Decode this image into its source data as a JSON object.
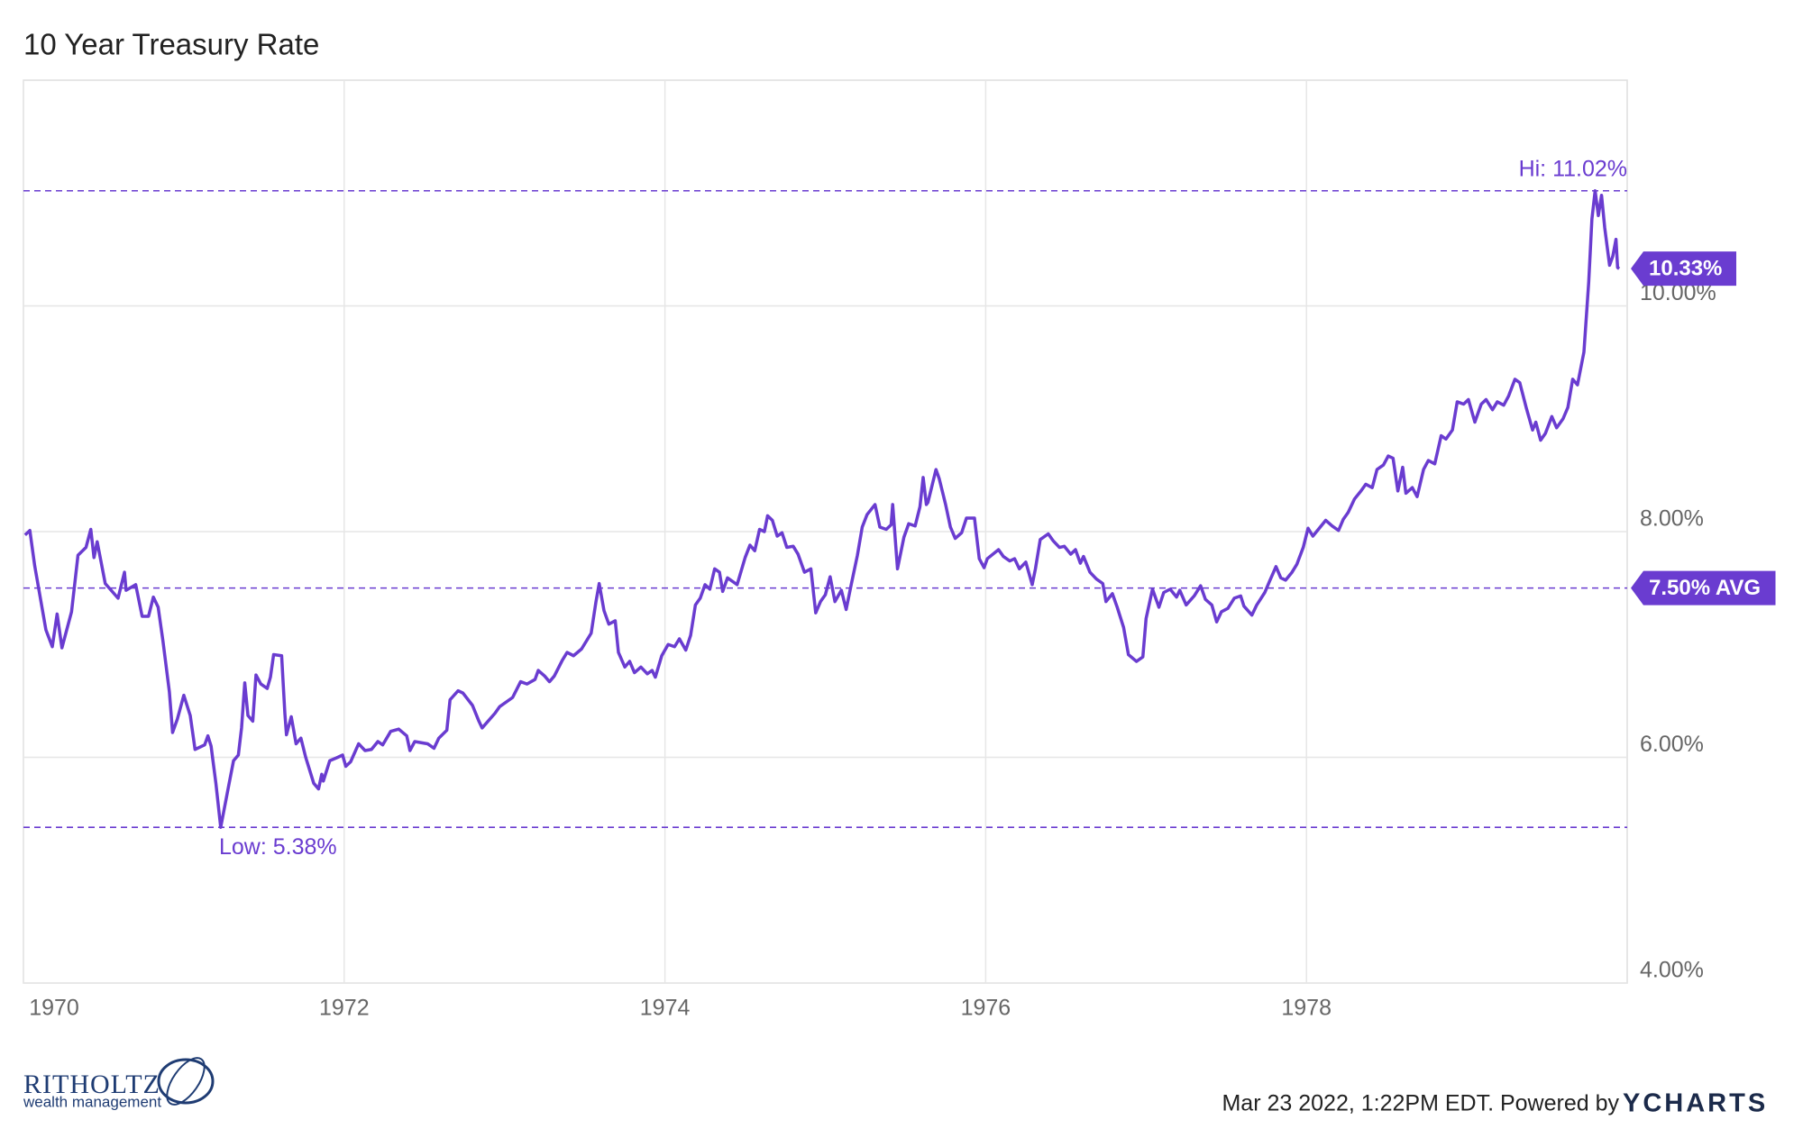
{
  "chart_data": {
    "type": "line",
    "title": "10 Year Treasury Rate",
    "color": "#6a3cd0",
    "x": [
      1970.01,
      1970.04,
      1970.07,
      1970.14,
      1970.18,
      1970.21,
      1970.24,
      1970.3,
      1970.34,
      1970.39,
      1970.42,
      1970.44,
      1970.46,
      1970.51,
      1970.59,
      1970.63,
      1970.64,
      1970.7,
      1970.74,
      1970.78,
      1970.81,
      1970.84,
      1970.87,
      1970.91,
      1970.93,
      1970.96,
      1971.0,
      1971.04,
      1971.07,
      1971.13,
      1971.15,
      1971.17,
      1971.2,
      1971.23,
      1971.28,
      1971.31,
      1971.34,
      1971.36,
      1971.38,
      1971.4,
      1971.43,
      1971.45,
      1971.48,
      1971.52,
      1971.54,
      1971.56,
      1971.61,
      1971.63,
      1971.64,
      1971.67,
      1971.7,
      1971.73,
      1971.76,
      1971.81,
      1971.84,
      1971.86,
      1971.87,
      1971.91,
      1971.96,
      1971.99,
      1972.01,
      1972.04,
      1972.09,
      1972.13,
      1972.17,
      1972.21,
      1972.24,
      1972.29,
      1972.34,
      1972.39,
      1972.41,
      1972.44,
      1972.52,
      1972.56,
      1972.59,
      1972.64,
      1972.66,
      1972.71,
      1972.74,
      1972.8,
      1972.84,
      1972.86,
      1972.94,
      1972.97,
      1973.05,
      1973.1,
      1973.14,
      1973.19,
      1973.21,
      1973.25,
      1973.28,
      1973.31,
      1973.36,
      1973.39,
      1973.43,
      1973.48,
      1973.54,
      1973.57,
      1973.59,
      1973.62,
      1973.65,
      1973.69,
      1973.71,
      1973.75,
      1973.78,
      1973.81,
      1973.85,
      1973.89,
      1973.92,
      1973.94,
      1973.98,
      1974.02,
      1974.06,
      1974.09,
      1974.13,
      1974.16,
      1974.19,
      1974.22,
      1974.25,
      1974.28,
      1974.31,
      1974.34,
      1974.36,
      1974.39,
      1974.45,
      1974.5,
      1974.53,
      1974.56,
      1974.59,
      1974.62,
      1974.64,
      1974.67,
      1974.7,
      1974.73,
      1974.76,
      1974.8,
      1974.83,
      1974.87,
      1974.91,
      1974.94,
      1974.97,
      1975.0,
      1975.03,
      1975.06,
      1975.1,
      1975.13,
      1975.16,
      1975.2,
      1975.23,
      1975.26,
      1975.31,
      1975.34,
      1975.38,
      1975.41,
      1975.42,
      1975.45,
      1975.49,
      1975.52,
      1975.56,
      1975.59,
      1975.61,
      1975.63,
      1975.64,
      1975.69,
      1975.71,
      1975.75,
      1975.78,
      1975.81,
      1975.85,
      1975.88,
      1975.93,
      1975.96,
      1975.99,
      1976.01,
      1976.08,
      1976.11,
      1976.15,
      1976.18,
      1976.21,
      1976.25,
      1976.29,
      1976.31,
      1976.34,
      1976.39,
      1976.42,
      1976.46,
      1976.49,
      1976.53,
      1976.56,
      1976.59,
      1976.61,
      1976.65,
      1976.69,
      1976.73,
      1976.75,
      1976.79,
      1976.82,
      1976.86,
      1976.89,
      1976.94,
      1976.98,
      1977.0,
      1977.04,
      1977.08,
      1977.11,
      1977.15,
      1977.19,
      1977.21,
      1977.25,
      1977.3,
      1977.34,
      1977.37,
      1977.41,
      1977.44,
      1977.47,
      1977.51,
      1977.55,
      1977.59,
      1977.61,
      1977.66,
      1977.69,
      1977.74,
      1977.77,
      1977.81,
      1977.84,
      1977.87,
      1977.91,
      1977.94,
      1977.98,
      1978.01,
      1978.04,
      1978.08,
      1978.12,
      1978.16,
      1978.2,
      1978.23,
      1978.26,
      1978.3,
      1978.34,
      1978.37,
      1978.41,
      1978.44,
      1978.48,
      1978.51,
      1978.54,
      1978.57,
      1978.6,
      1978.62,
      1978.66,
      1978.69,
      1978.73,
      1978.76,
      1978.8,
      1978.84,
      1978.87,
      1978.91,
      1978.94,
      1978.98,
      1979.01,
      1979.05,
      1979.09,
      1979.12,
      1979.16,
      1979.19,
      1979.23,
      1979.26,
      1979.3,
      1979.33,
      1979.37,
      1979.41,
      1979.43,
      1979.46,
      1979.49,
      1979.53,
      1979.56,
      1979.6,
      1979.63,
      1979.66,
      1979.69,
      1979.73,
      1979.76,
      1979.78,
      1979.8,
      1979.82,
      1979.84,
      1979.86,
      1979.89,
      1979.91,
      1979.93,
      1979.94,
      1979.95
    ],
    "values": [
      7.97,
      8.01,
      7.7,
      7.13,
      6.98,
      7.27,
      6.97,
      7.29,
      7.79,
      7.86,
      8.02,
      7.77,
      7.91,
      7.54,
      7.41,
      7.64,
      7.48,
      7.53,
      7.25,
      7.25,
      7.42,
      7.33,
      7.03,
      6.58,
      6.22,
      6.34,
      6.55,
      6.37,
      6.07,
      6.11,
      6.19,
      6.1,
      5.77,
      5.38,
      5.75,
      5.97,
      6.02,
      6.26,
      6.66,
      6.37,
      6.32,
      6.73,
      6.65,
      6.61,
      6.71,
      6.91,
      6.9,
      6.39,
      6.2,
      6.36,
      6.12,
      6.17,
      6.0,
      5.77,
      5.72,
      5.85,
      5.79,
      5.97,
      6.0,
      6.02,
      5.92,
      5.96,
      6.12,
      6.06,
      6.07,
      6.14,
      6.11,
      6.23,
      6.25,
      6.19,
      6.06,
      6.14,
      6.12,
      6.08,
      6.17,
      6.24,
      6.51,
      6.59,
      6.57,
      6.46,
      6.32,
      6.26,
      6.39,
      6.45,
      6.53,
      6.67,
      6.65,
      6.69,
      6.77,
      6.72,
      6.67,
      6.72,
      6.86,
      6.93,
      6.9,
      6.96,
      7.1,
      7.38,
      7.54,
      7.3,
      7.18,
      7.21,
      6.93,
      6.8,
      6.85,
      6.75,
      6.8,
      6.74,
      6.77,
      6.71,
      6.9,
      7.0,
      6.98,
      7.05,
      6.95,
      7.08,
      7.35,
      7.41,
      7.53,
      7.49,
      7.67,
      7.64,
      7.47,
      7.59,
      7.53,
      7.77,
      7.88,
      7.83,
      8.02,
      8.0,
      8.14,
      8.1,
      7.96,
      7.99,
      7.86,
      7.87,
      7.8,
      7.64,
      7.67,
      7.28,
      7.38,
      7.44,
      7.6,
      7.38,
      7.48,
      7.31,
      7.52,
      7.79,
      8.04,
      8.15,
      8.24,
      8.04,
      8.02,
      8.06,
      8.24,
      7.67,
      7.95,
      8.07,
      8.05,
      8.22,
      8.48,
      8.24,
      8.26,
      8.55,
      8.47,
      8.24,
      8.04,
      7.94,
      7.99,
      8.12,
      8.12,
      7.76,
      7.68,
      7.76,
      7.84,
      7.78,
      7.74,
      7.76,
      7.67,
      7.73,
      7.53,
      7.67,
      7.93,
      7.98,
      7.92,
      7.86,
      7.87,
      7.8,
      7.84,
      7.72,
      7.78,
      7.64,
      7.58,
      7.54,
      7.38,
      7.45,
      7.33,
      7.15,
      6.91,
      6.85,
      6.89,
      7.23,
      7.49,
      7.33,
      7.46,
      7.49,
      7.42,
      7.48,
      7.35,
      7.43,
      7.52,
      7.4,
      7.35,
      7.2,
      7.29,
      7.32,
      7.41,
      7.43,
      7.34,
      7.26,
      7.35,
      7.46,
      7.56,
      7.69,
      7.59,
      7.57,
      7.64,
      7.71,
      7.86,
      8.03,
      7.96,
      8.03,
      8.1,
      8.05,
      8.01,
      8.11,
      8.17,
      8.29,
      8.36,
      8.42,
      8.39,
      8.55,
      8.59,
      8.67,
      8.65,
      8.36,
      8.57,
      8.34,
      8.39,
      8.31,
      8.55,
      8.63,
      8.6,
      8.85,
      8.82,
      8.9,
      9.15,
      9.13,
      9.17,
      8.97,
      9.13,
      9.17,
      9.08,
      9.15,
      9.12,
      9.2,
      9.35,
      9.32,
      9.1,
      8.9,
      8.97,
      8.81,
      8.87,
      9.02,
      8.92,
      9.0,
      9.1,
      9.35,
      9.3,
      9.59,
      10.21,
      10.77,
      11.02,
      10.8,
      10.98,
      10.69,
      10.36,
      10.44,
      10.59,
      10.34,
      10.33
    ],
    "xlim": [
      1970,
      1980
    ],
    "xticks": [
      1970,
      1972,
      1974,
      1976,
      1978
    ],
    "ylim": [
      4,
      12
    ],
    "yticks": [
      {
        "value": 4,
        "label": "4.00%"
      },
      {
        "value": 6,
        "label": "6.00%"
      },
      {
        "value": 8,
        "label": "8.00%"
      },
      {
        "value": 10,
        "label": "10.00%"
      }
    ],
    "grid": true,
    "high": {
      "value": 11.02,
      "label": "Hi: 11.02%"
    },
    "low": {
      "value": 5.38,
      "label": "Low: 5.38%"
    },
    "average": {
      "value": 7.5,
      "label": "7.50% AVG"
    },
    "last": {
      "value": 10.33,
      "label": "10.33%"
    }
  },
  "footer": {
    "logo": "RITHOLTZ",
    "logo_sub": "wealth management",
    "timestamp": "Mar 23 2022, 1:22PM EDT. Powered by",
    "brand": "YCHARTS"
  }
}
